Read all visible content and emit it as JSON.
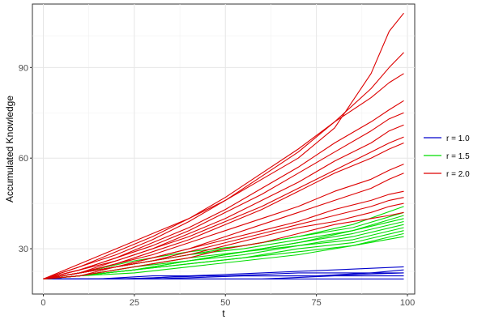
{
  "chart_data": {
    "type": "line",
    "xlabel": "t",
    "ylabel": "Accumulated Knowledge",
    "xlim": [
      -3,
      102
    ],
    "ylim": [
      15,
      111
    ],
    "x_ticks": [
      0,
      25,
      50,
      75,
      100
    ],
    "x_tick_labels": [
      "0",
      "25",
      "50",
      "75",
      "100"
    ],
    "y_ticks": [
      30,
      60,
      90
    ],
    "y_tick_labels": [
      "30",
      "60",
      "90"
    ],
    "grid": true,
    "legend_position": "right",
    "groups": [
      {
        "name": "r = 1.0",
        "color": "#0000cc",
        "series": [
          {
            "x": [
              0,
              5,
              20,
              45,
              60,
              75,
              90,
              99
            ],
            "values": [
              20,
              20,
              20,
              21,
              21,
              21,
              22,
              22
            ]
          },
          {
            "x": [
              0,
              15,
              30,
              50,
              70,
              90,
              99
            ],
            "values": [
              20,
              20,
              21,
              21,
              22,
              22,
              23
            ]
          },
          {
            "x": [
              0,
              10,
              25,
              40,
              60,
              80,
              99
            ],
            "values": [
              20,
              20,
              20,
              21,
              22,
              23,
              24
            ]
          },
          {
            "x": [
              0,
              20,
              40,
              60,
              80,
              99
            ],
            "values": [
              20,
              20,
              20,
              20,
              21,
              21
            ]
          },
          {
            "x": [
              0,
              30,
              55,
              75,
              99
            ],
            "values": [
              20,
              20,
              21,
              21,
              22
            ]
          },
          {
            "x": [
              0,
              40,
              70,
              99
            ],
            "values": [
              20,
              20,
              20,
              20
            ]
          }
        ]
      },
      {
        "name": "r = 1.5",
        "color": "#00dd00",
        "series": [
          {
            "x": [
              0,
              10,
              25,
              40,
              55,
              70,
              85,
              99
            ],
            "values": [
              20,
              22,
              26,
              29,
              31,
              34,
              38,
              44
            ]
          },
          {
            "x": [
              0,
              10,
              25,
              40,
              55,
              70,
              85,
              99
            ],
            "values": [
              20,
              22,
              25,
              28,
              31,
              34,
              37,
              42
            ]
          },
          {
            "x": [
              0,
              10,
              25,
              40,
              55,
              70,
              85,
              99
            ],
            "values": [
              20,
              22,
              25,
              28,
              30,
              33,
              36,
              40
            ]
          },
          {
            "x": [
              0,
              10,
              25,
              40,
              55,
              70,
              85,
              99
            ],
            "values": [
              20,
              21,
              24,
              27,
              29,
              32,
              35,
              39
            ]
          },
          {
            "x": [
              0,
              10,
              25,
              40,
              55,
              70,
              85,
              99
            ],
            "values": [
              20,
              21,
              24,
              26,
              29,
              31,
              34,
              38
            ]
          },
          {
            "x": [
              0,
              10,
              25,
              40,
              55,
              70,
              85,
              99
            ],
            "values": [
              20,
              21,
              23,
              26,
              28,
              31,
              33,
              37
            ]
          },
          {
            "x": [
              0,
              10,
              25,
              40,
              55,
              70,
              85,
              99
            ],
            "values": [
              20,
              21,
              23,
              25,
              27,
              30,
              32,
              36
            ]
          },
          {
            "x": [
              0,
              10,
              25,
              40,
              55,
              70,
              85,
              99
            ],
            "values": [
              20,
              21,
              23,
              25,
              27,
              29,
              31,
              35
            ]
          },
          {
            "x": [
              0,
              10,
              25,
              40,
              55,
              70,
              85,
              99
            ],
            "values": [
              20,
              21,
              22,
              24,
              26,
              28,
              31,
              34
            ]
          },
          {
            "x": [
              0,
              10,
              25,
              40,
              55,
              70,
              85,
              99
            ],
            "values": [
              20,
              21,
              23,
              26,
              29,
              32,
              36,
              41
            ]
          }
        ]
      },
      {
        "name": "r = 2.0",
        "color": "#dd0000",
        "series": [
          {
            "x": [
              0,
              10,
              20,
              30,
              40,
              50,
              60,
              70,
              80,
              90,
              95,
              99
            ],
            "values": [
              20,
              25,
              30,
              35,
              40,
              46,
              53,
              60,
              70,
              88,
              102,
              108
            ]
          },
          {
            "x": [
              0,
              10,
              20,
              30,
              40,
              50,
              60,
              70,
              80,
              90,
              95,
              99
            ],
            "values": [
              20,
              24,
              29,
              34,
              40,
              47,
              55,
              63,
              72,
              83,
              90,
              95
            ]
          },
          {
            "x": [
              0,
              10,
              20,
              30,
              40,
              50,
              60,
              70,
              80,
              90,
              95,
              99
            ],
            "values": [
              20,
              24,
              28,
              33,
              39,
              46,
              54,
              62,
              72,
              80,
              85,
              88
            ]
          },
          {
            "x": [
              0,
              10,
              20,
              30,
              40,
              50,
              60,
              70,
              80,
              90,
              95,
              99
            ],
            "values": [
              20,
              23,
              27,
              32,
              37,
              43,
              50,
              57,
              65,
              72,
              76,
              79
            ]
          },
          {
            "x": [
              0,
              10,
              20,
              30,
              40,
              50,
              60,
              70,
              80,
              90,
              95,
              99
            ],
            "values": [
              20,
              23,
              27,
              31,
              36,
              42,
              48,
              55,
              62,
              69,
              73,
              75
            ]
          },
          {
            "x": [
              0,
              10,
              20,
              30,
              40,
              50,
              60,
              70,
              80,
              90,
              95,
              99
            ],
            "values": [
              20,
              23,
              26,
              30,
              35,
              40,
              46,
              52,
              59,
              65,
              69,
              71
            ]
          },
          {
            "x": [
              0,
              10,
              20,
              30,
              40,
              50,
              60,
              70,
              80,
              90,
              95,
              99
            ],
            "values": [
              20,
              22,
              26,
              30,
              34,
              39,
              44,
              50,
              56,
              62,
              65,
              67
            ]
          },
          {
            "x": [
              0,
              10,
              20,
              30,
              40,
              50,
              60,
              70,
              80,
              90,
              95,
              99
            ],
            "values": [
              20,
              22,
              25,
              29,
              33,
              38,
              43,
              49,
              55,
              60,
              63,
              65
            ]
          },
          {
            "x": [
              0,
              10,
              20,
              30,
              40,
              50,
              60,
              70,
              80,
              90,
              95,
              99
            ],
            "values": [
              20,
              22,
              25,
              28,
              32,
              36,
              40,
              44,
              49,
              53,
              56,
              58
            ]
          },
          {
            "x": [
              0,
              10,
              20,
              30,
              40,
              50,
              60,
              70,
              80,
              90,
              95,
              99
            ],
            "values": [
              20,
              22,
              24,
              27,
              30,
              34,
              38,
              42,
              46,
              50,
              53,
              55
            ]
          },
          {
            "x": [
              0,
              10,
              20,
              30,
              40,
              50,
              60,
              70,
              80,
              90,
              95,
              99
            ],
            "values": [
              20,
              22,
              24,
              27,
              30,
              33,
              36,
              39,
              43,
              46,
              48,
              49
            ]
          },
          {
            "x": [
              0,
              10,
              20,
              30,
              40,
              50,
              60,
              70,
              80,
              90,
              95,
              99
            ],
            "values": [
              20,
              22,
              24,
              26,
              29,
              32,
              35,
              38,
              41,
              44,
              46,
              47
            ]
          },
          {
            "x": [
              0,
              10,
              20,
              30,
              40,
              50,
              60,
              70,
              80,
              90,
              95,
              99
            ],
            "values": [
              20,
              21,
              24,
              26,
              28,
              31,
              34,
              37,
              39,
              42,
              44,
              45
            ]
          },
          {
            "x": [
              0,
              10,
              20,
              30,
              40,
              50,
              60,
              70,
              80,
              90,
              95,
              99
            ],
            "values": [
              20,
              21,
              23,
              25,
              27,
              30,
              32,
              35,
              38,
              40,
              41,
              42
            ]
          }
        ]
      }
    ]
  }
}
